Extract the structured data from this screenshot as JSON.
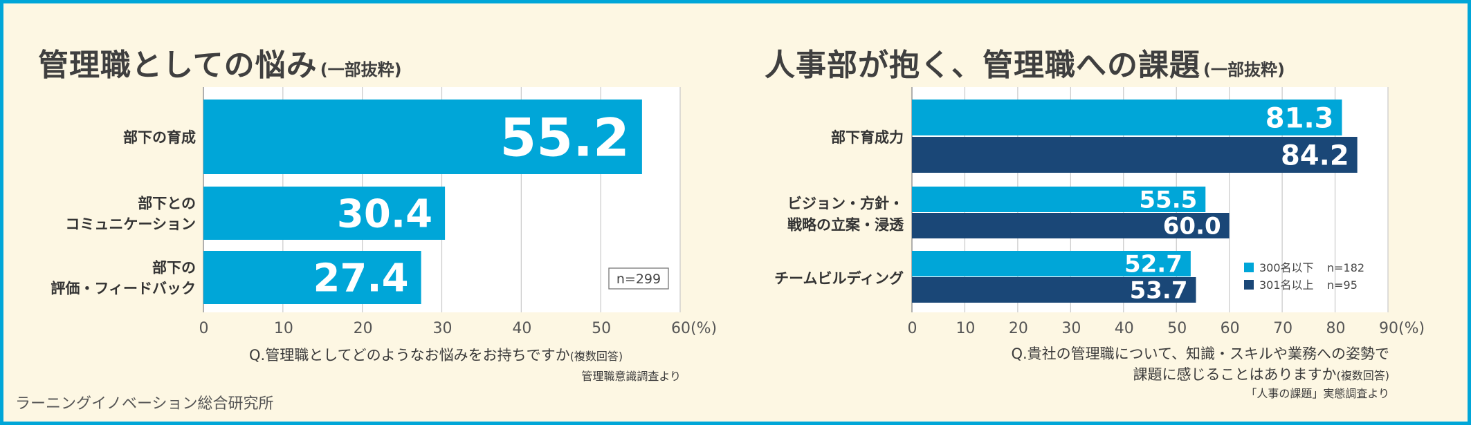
{
  "left_title": "管理職としての悩み",
  "left_title_suffix": "(一部抜粋)",
  "right_title": "人事部が抱く、管理職への課題",
  "right_title_suffix": "(一部抜粋)",
  "left_note_main": "Q.管理職としてどのようなお悩みをお持ちですか",
  "left_note_suffix": "(複数回答)",
  "left_source": "管理職意識調査より",
  "right_note_line1": "Q.貴社の管理職について、知識・スキルや業務への姿勢で",
  "right_note_line2": "課題に感じることはありますか",
  "right_note_suffix": "(複数回答)",
  "right_source": "「人事の課題」実態調査より",
  "company": "ラーニングイノベーション総合研究所",
  "colors": {
    "light_blue": "#00a6d8",
    "dark_blue": "#1a4777",
    "background": "#fdf7e3",
    "border": "#00a6d8"
  },
  "chart_data": [
    {
      "type": "bar",
      "orientation": "horizontal",
      "categories": [
        [
          "部下の育成"
        ],
        [
          "部下との",
          "コミュニケーション"
        ],
        [
          "部下の",
          "評価・フィードバック"
        ]
      ],
      "values": [
        55.2,
        30.4,
        27.4
      ],
      "value_labels": [
        "55.2",
        "30.4",
        "27.4"
      ],
      "xlim": [
        0,
        60
      ],
      "xticks": [
        0,
        10,
        20,
        30,
        40,
        50,
        60
      ],
      "xticklabels": [
        "0",
        "10",
        "20",
        "30",
        "40",
        "50",
        "60(%)"
      ],
      "annotation": "n=299",
      "grid": true
    },
    {
      "type": "bar",
      "orientation": "horizontal",
      "categories": [
        [
          "部下育成力"
        ],
        [
          "ビジョン・方針・",
          "戦略の立案・浸透"
        ],
        [
          "チームビルディング"
        ]
      ],
      "series": [
        {
          "name": "300名以下",
          "n_label": "n=182",
          "values": [
            81.3,
            55.5,
            52.7
          ],
          "value_labels": [
            "81.3",
            "55.5",
            "52.7"
          ],
          "color": "#00a6d8"
        },
        {
          "name": "301名以上",
          "n_label": "n=95",
          "values": [
            84.2,
            60.0,
            53.7
          ],
          "value_labels": [
            "84.2",
            "60.0",
            "53.7"
          ],
          "color": "#1a4777"
        }
      ],
      "xlim": [
        0,
        90
      ],
      "xticks": [
        0,
        10,
        20,
        30,
        40,
        50,
        60,
        70,
        80,
        90
      ],
      "xticklabels": [
        "0",
        "10",
        "20",
        "30",
        "40",
        "50",
        "60",
        "70",
        "80",
        "90(%)"
      ],
      "legend": "bottom-right",
      "grid": true
    }
  ]
}
